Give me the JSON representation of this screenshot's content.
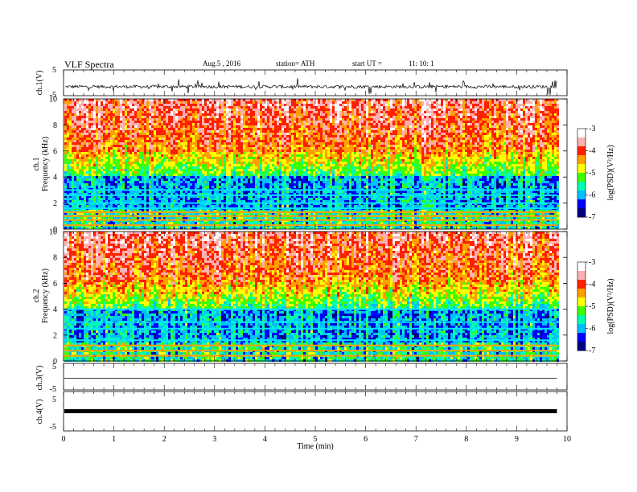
{
  "header": {
    "title": "VLF  Spectra",
    "date": "Aug.5  , 2016",
    "station": "station= ATH",
    "start_label": "start  UT  =",
    "start_time": "11: 10: 1"
  },
  "colors": {
    "spectrogram_scale": [
      "#000080",
      "#0000ff",
      "#00bfff",
      "#00ffb0",
      "#3cff00",
      "#ffff00",
      "#ffa000",
      "#ff2000",
      "#ffb0b0",
      "#ffffff"
    ],
    "trace": "#000000"
  },
  "chart_data": [
    {
      "type": "line",
      "name": "ch1-waveform",
      "ylabel": "ch.1(V)",
      "ylim": [
        -5,
        5
      ],
      "yticks": [
        "5",
        "-5"
      ],
      "baseline_v": -1.5,
      "amplitude_v": 0.6
    },
    {
      "type": "heatmap",
      "name": "ch1-spectrogram",
      "ylabel_top": "ch.1",
      "ylabel": "Frequency  (kHz)",
      "ylim": [
        0,
        10
      ],
      "yticks": [
        "0",
        "2",
        "4",
        "6",
        "8",
        "10"
      ],
      "xlim": [
        0,
        10
      ],
      "colorbar": {
        "label": "log(PSD)(V²/Hz)",
        "range": [
          -7,
          -3
        ],
        "ticks": [
          "-3",
          "-4",
          "-5",
          "-6",
          "-7"
        ]
      },
      "persistent_lines_khz": [
        0.3,
        0.7,
        1.0,
        1.3,
        1.6,
        2.0,
        2.6,
        3.0
      ]
    },
    {
      "type": "heatmap",
      "name": "ch2-spectrogram",
      "ylabel_top": "ch.2",
      "ylabel": "Frequency  (kHz)",
      "ylim": [
        0,
        10
      ],
      "yticks": [
        "0",
        "2",
        "4",
        "6",
        "8",
        "10"
      ],
      "xlim": [
        0,
        10
      ],
      "colorbar": {
        "label": "log(PSD)(V²/Hz)",
        "range": [
          -7,
          -3
        ],
        "ticks": [
          "-3",
          "-4",
          "-5",
          "-6",
          "-7"
        ]
      },
      "persistent_lines_khz": [
        0.4,
        0.8,
        1.2,
        1.6,
        2.5,
        3.0,
        4.0
      ]
    },
    {
      "type": "line",
      "name": "ch3-waveform",
      "ylabel": "ch.3(V)",
      "ylim": [
        -5,
        5
      ],
      "yticks": [
        "5",
        "-5"
      ],
      "baseline_v": 0,
      "amplitude_v": 0
    },
    {
      "type": "line",
      "name": "ch4-waveform",
      "ylabel": "ch.4(V)",
      "ylim": [
        -5,
        5
      ],
      "yticks": [
        "5",
        "-5"
      ],
      "baseline_v": 0,
      "amplitude_v": 0.3
    }
  ],
  "xaxis": {
    "label": "Time  (min)",
    "range": [
      0,
      10
    ],
    "data_end_min": 9.8,
    "ticks": [
      "0",
      "1",
      "2",
      "3",
      "4",
      "5",
      "6",
      "7",
      "8",
      "9",
      "10"
    ]
  }
}
